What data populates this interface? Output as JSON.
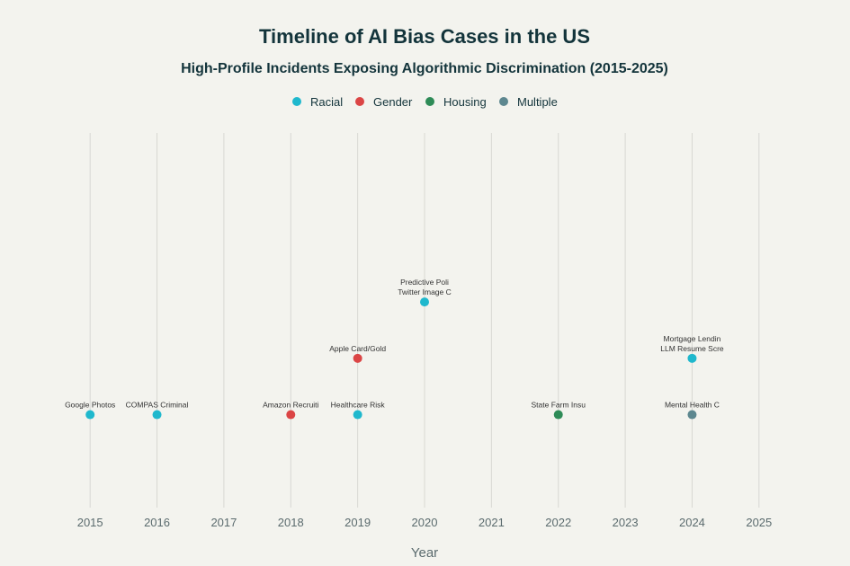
{
  "chart_data": {
    "type": "scatter",
    "title": "Timeline of AI Bias Cases in the US",
    "subtitle": "High-Profile Incidents Exposing Algorithmic Discrimination (2015-2025)",
    "xlabel": "Year",
    "ylabel": "",
    "xlim": [
      2014.5,
      2025.5
    ],
    "ylim": [
      -0.65,
      6
    ],
    "xticks": [
      2015,
      2016,
      2017,
      2018,
      2019,
      2020,
      2021,
      2022,
      2023,
      2024,
      2025
    ],
    "y_axis_visible": false,
    "grid": "vertical",
    "legend_placement": "top-center",
    "categories": [
      {
        "name": "Racial",
        "color": "#1FB8CD"
      },
      {
        "name": "Gender",
        "color": "#DB4545"
      },
      {
        "name": "Housing",
        "color": "#2E8B57"
      },
      {
        "name": "Multiple",
        "color": "#5D878F"
      }
    ],
    "points": [
      {
        "x": 2015,
        "y": 1,
        "label": "Google Photos",
        "category": "Racial"
      },
      {
        "x": 2016,
        "y": 1,
        "label": "COMPAS Criminal",
        "category": "Racial"
      },
      {
        "x": 2018,
        "y": 1,
        "label": "Amazon Recruiti",
        "category": "Gender"
      },
      {
        "x": 2019,
        "y": 1,
        "label": "Healthcare Risk",
        "category": "Racial"
      },
      {
        "x": 2019,
        "y": 2,
        "label": "Apple Card/Gold",
        "category": "Gender"
      },
      {
        "x": 2020,
        "y": 3,
        "label": "Twitter Image C",
        "category": "Racial"
      },
      {
        "x": 2020,
        "y": 3,
        "label": "Predictive Poli",
        "category": "Racial"
      },
      {
        "x": 2022,
        "y": 1,
        "label": "State Farm Insu",
        "category": "Housing"
      },
      {
        "x": 2024,
        "y": 1,
        "label": "Mental Health C",
        "category": "Multiple"
      },
      {
        "x": 2024,
        "y": 2,
        "label": "LLM Resume Scre",
        "category": "Racial"
      },
      {
        "x": 2024,
        "y": 2,
        "label": "Mortgage Lendin",
        "category": "Racial"
      }
    ]
  }
}
